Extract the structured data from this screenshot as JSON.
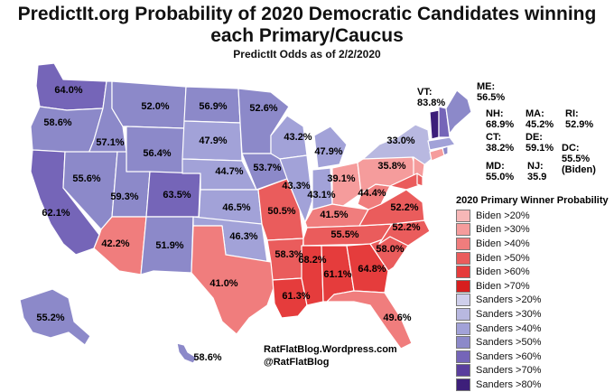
{
  "title_line1": "PredictIt.org Probability of 2020 Democratic Candidates winning",
  "title_line2": "each Primary/Caucus",
  "subtitle": "PredictIt Odds as of 2/2/2020",
  "legend": {
    "title": "2020 Primary Winner Probability",
    "items": [
      {
        "label": "Biden >20%",
        "color": "#f7b7b7"
      },
      {
        "label": "Biden >30%",
        "color": "#f59c9c"
      },
      {
        "label": "Biden >40%",
        "color": "#f07d7d"
      },
      {
        "label": "Biden >50%",
        "color": "#ea5c5c"
      },
      {
        "label": "Biden >60%",
        "color": "#e53c3c"
      },
      {
        "label": "Biden >70%",
        "color": "#d71f1f"
      },
      {
        "label": "Sanders >20%",
        "color": "#cfcfeb"
      },
      {
        "label": "Sanders >30%",
        "color": "#b8b8e0"
      },
      {
        "label": "Sanders >40%",
        "color": "#a2a2d8"
      },
      {
        "label": "Sanders >50%",
        "color": "#8c89c9"
      },
      {
        "label": "Sanders >60%",
        "color": "#7565b8"
      },
      {
        "label": "Sanders >70%",
        "color": "#5a3e9d"
      },
      {
        "label": "Sanders >80%",
        "color": "#3d1f7a"
      }
    ]
  },
  "states": {
    "WA": "64.0%",
    "OR": "58.6%",
    "CA": "62.1%",
    "ID": "57.1%",
    "NV": "55.6%",
    "MT": "52.0%",
    "WY": "56.4%",
    "UT": "59.3%",
    "AZ": "42.2%",
    "CO": "63.5%",
    "NM": "51.9%",
    "ND": "56.9%",
    "SD": "47.9%",
    "NE": "44.7%",
    "KS": "46.5%",
    "OK": "46.3%",
    "TX": "41.0%",
    "MN": "52.6%",
    "IA": "53.7%",
    "MO": "50.5%",
    "AR": "58.3%",
    "LA": "61.3%",
    "WI": "43.2%",
    "IL": "43.3%",
    "MI": "47.9%",
    "IN": "43.1%",
    "OH": "39.1%",
    "KY": "41.5%",
    "TN": "55.5%",
    "MS": "68.2%",
    "AL": "61.1%",
    "GA": "64.8%",
    "FL": "49.6%",
    "SC": "58.0%",
    "NC": "52.2%",
    "VA": "52.2%",
    "WV": "44.4%",
    "PA": "35.8%",
    "NY": "33.0%",
    "AK": "55.2%",
    "HI": "58.6%"
  },
  "ne_labels": {
    "vt": [
      "VT:",
      "83.8%"
    ],
    "me": [
      "ME:",
      "56.5%"
    ],
    "nh": [
      "NH:",
      "68.9%"
    ],
    "ma": [
      "MA:",
      "45.2%"
    ],
    "ri": [
      "RI:",
      "52.9%"
    ],
    "ct": [
      "CT:",
      "38.2%"
    ],
    "de": [
      "DE:",
      "59.1%"
    ],
    "dc": [
      "DC:",
      "55.5%",
      "(Biden)"
    ],
    "md": [
      "MD:",
      "55.0%"
    ],
    "nj": [
      "NJ:",
      "35.9"
    ]
  },
  "credit": {
    "line1": "RatFlatBlog.Wordpress.com",
    "line2": "@RatFlatBlog"
  }
}
